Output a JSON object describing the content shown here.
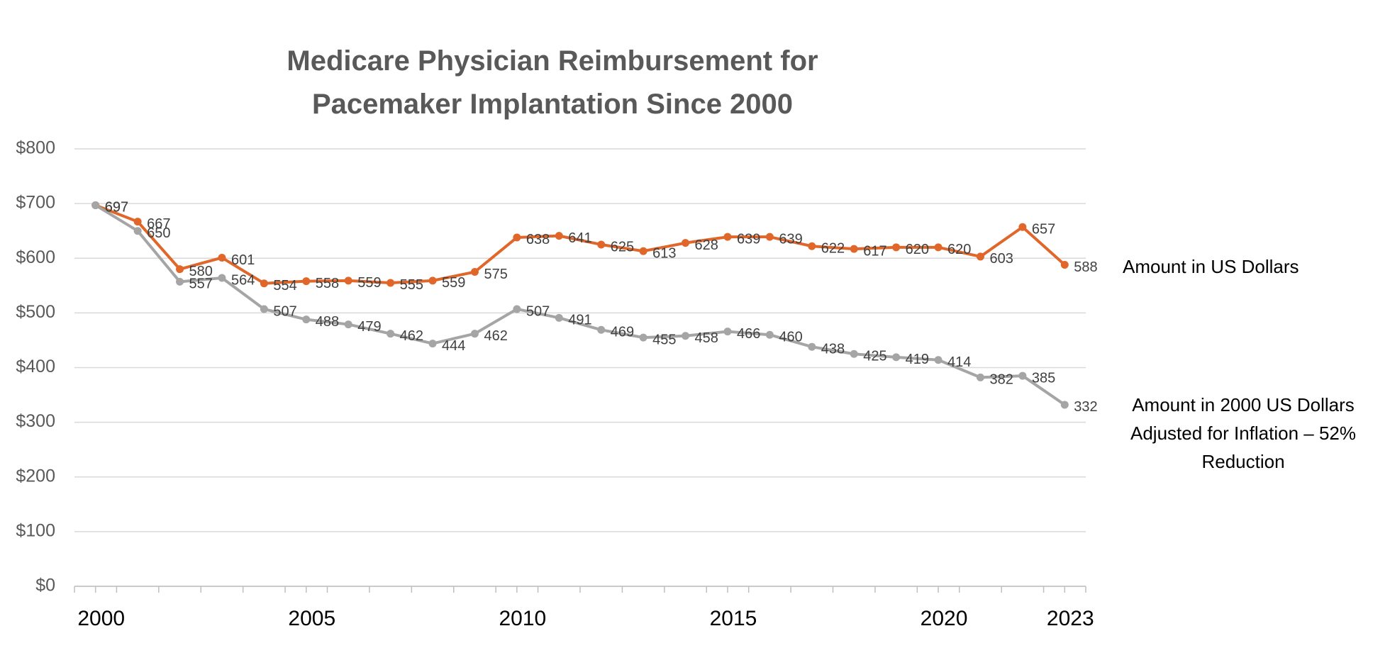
{
  "chart_data": {
    "type": "line",
    "title": "Medicare Physician Reimbursement for Pacemaker Implantation Since 2000",
    "x": [
      2000,
      2001,
      2002,
      2003,
      2004,
      2005,
      2006,
      2007,
      2008,
      2009,
      2010,
      2011,
      2012,
      2013,
      2014,
      2015,
      2016,
      2017,
      2018,
      2019,
      2020,
      2021,
      2022,
      2023
    ],
    "series": [
      {
        "name": "Amount in US Dollars",
        "color": "#e0662a",
        "values": [
          697,
          667,
          580,
          601,
          554,
          558,
          559,
          555,
          559,
          575,
          638,
          641,
          625,
          613,
          628,
          639,
          639,
          622,
          617,
          620,
          620,
          603,
          657,
          588
        ]
      },
      {
        "name": "Amount in 2000 US Dollars Adjusted for Inflation – 52% Reduction",
        "color": "#a5a5a5",
        "values": [
          697,
          650,
          557,
          564,
          507,
          488,
          479,
          462,
          444,
          462,
          507,
          491,
          469,
          455,
          458,
          466,
          460,
          438,
          425,
          419,
          414,
          382,
          385,
          332
        ]
      }
    ],
    "xlim": [
      1999.5,
      2023.5
    ],
    "xticks": [
      2000,
      2005,
      2010,
      2015,
      2020,
      2023
    ],
    "ylim": [
      0,
      800
    ],
    "yticks": [
      {
        "value": 0,
        "label": "$0"
      },
      {
        "value": 100,
        "label": "$100"
      },
      {
        "value": 200,
        "label": "$200"
      },
      {
        "value": 300,
        "label": "$300"
      },
      {
        "value": 400,
        "label": "$400"
      },
      {
        "value": 500,
        "label": "$500"
      },
      {
        "value": 600,
        "label": "$600"
      },
      {
        "value": 700,
        "label": "$700"
      },
      {
        "value": 800,
        "label": "$800"
      }
    ],
    "grid": true
  }
}
